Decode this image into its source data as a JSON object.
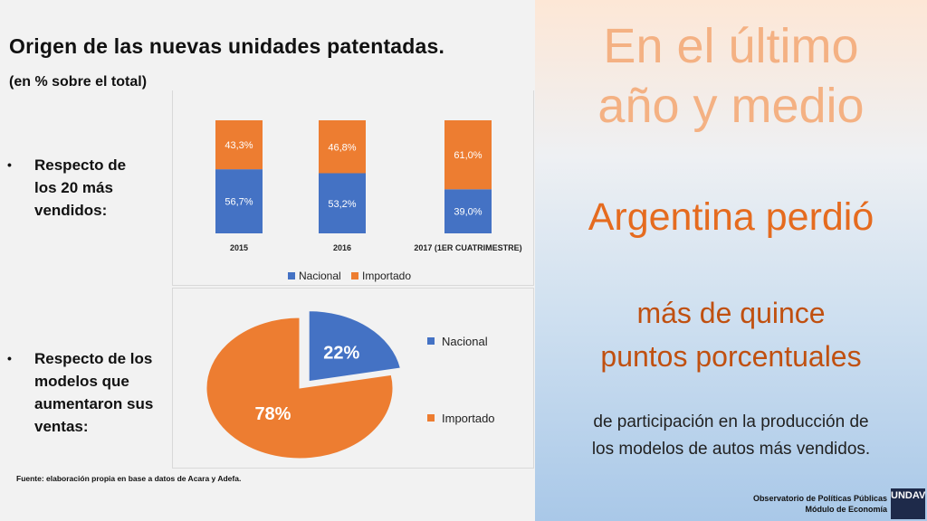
{
  "title": "Origen de las nuevas unidades patentadas.",
  "subtitle": "(en % sobre el total)",
  "bullets": [
    "Respecto de\nlos 20 más\nvendidos:",
    "Respecto de los\nmodelos que\naumentaron sus\nventas:"
  ],
  "colors": {
    "nacional": "#4472c4",
    "importado": "#ed7d31"
  },
  "chart_data": [
    {
      "type": "bar",
      "stacked": true,
      "categories": [
        "2015",
        "2016",
        "2017 (1ER CUATRIMESTRE)"
      ],
      "series": [
        {
          "name": "Nacional",
          "values": [
            56.7,
            53.2,
            39.0
          ],
          "labels": [
            "56,7%",
            "53,2%",
            "39,0%"
          ]
        },
        {
          "name": "Importado",
          "values": [
            43.3,
            46.8,
            61.0
          ],
          "labels": [
            "43,3%",
            "46,8%",
            "61,0%"
          ]
        }
      ],
      "ylim": [
        0,
        100
      ],
      "grid": false,
      "legend": "bottom"
    },
    {
      "type": "pie",
      "slices": [
        {
          "name": "Nacional",
          "value": 22,
          "label": "22%",
          "exploded": true
        },
        {
          "name": "Importado",
          "value": 78,
          "label": "78%"
        }
      ],
      "legend": "right"
    }
  ],
  "legend_labels": {
    "nacional": "Nacional",
    "importado": "Importado"
  },
  "source": "Fuente: elaboración propia en base a datos de Acara y Adefa.",
  "right_panel": {
    "line1": "En el último\naño y medio",
    "line2": "Argentina perdió",
    "line3": "más de quince\npuntos porcentuales",
    "line4": "de participación en la producción de\nlos modelos de autos más vendidos."
  },
  "footer": {
    "line1": "Observatorio de Políticas Públicas",
    "line2": "Módulo de Economía"
  },
  "logo": {
    "name": "UNDAV",
    "sub": "UNIVERSIDAD NACIONAL DE AVELLANEDA"
  }
}
